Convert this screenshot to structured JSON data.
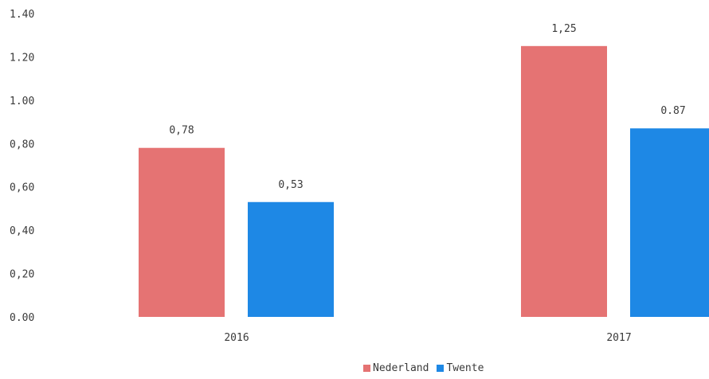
{
  "chart_data": {
    "type": "bar",
    "categories": [
      "2016",
      "2017"
    ],
    "series": [
      {
        "name": "Nederland",
        "values": [
          0.78,
          1.25
        ],
        "labels": [
          "0,78",
          "1,25"
        ],
        "color": "#e57373"
      },
      {
        "name": "Twente",
        "values": [
          0.53,
          0.87
        ],
        "labels": [
          "0,53",
          "0.87"
        ],
        "color": "#1e88e5"
      }
    ],
    "ylim": [
      0,
      1.4
    ],
    "yticks": [
      0,
      0.2,
      0.4,
      0.6,
      0.8,
      1.0,
      1.2,
      1.4
    ],
    "ytick_labels": [
      "0.00",
      "0,20",
      "0,40",
      "0,60",
      "0,80",
      "1.00",
      "1.20",
      "1.40"
    ],
    "grid": false,
    "legend_position": "bottom-center"
  }
}
